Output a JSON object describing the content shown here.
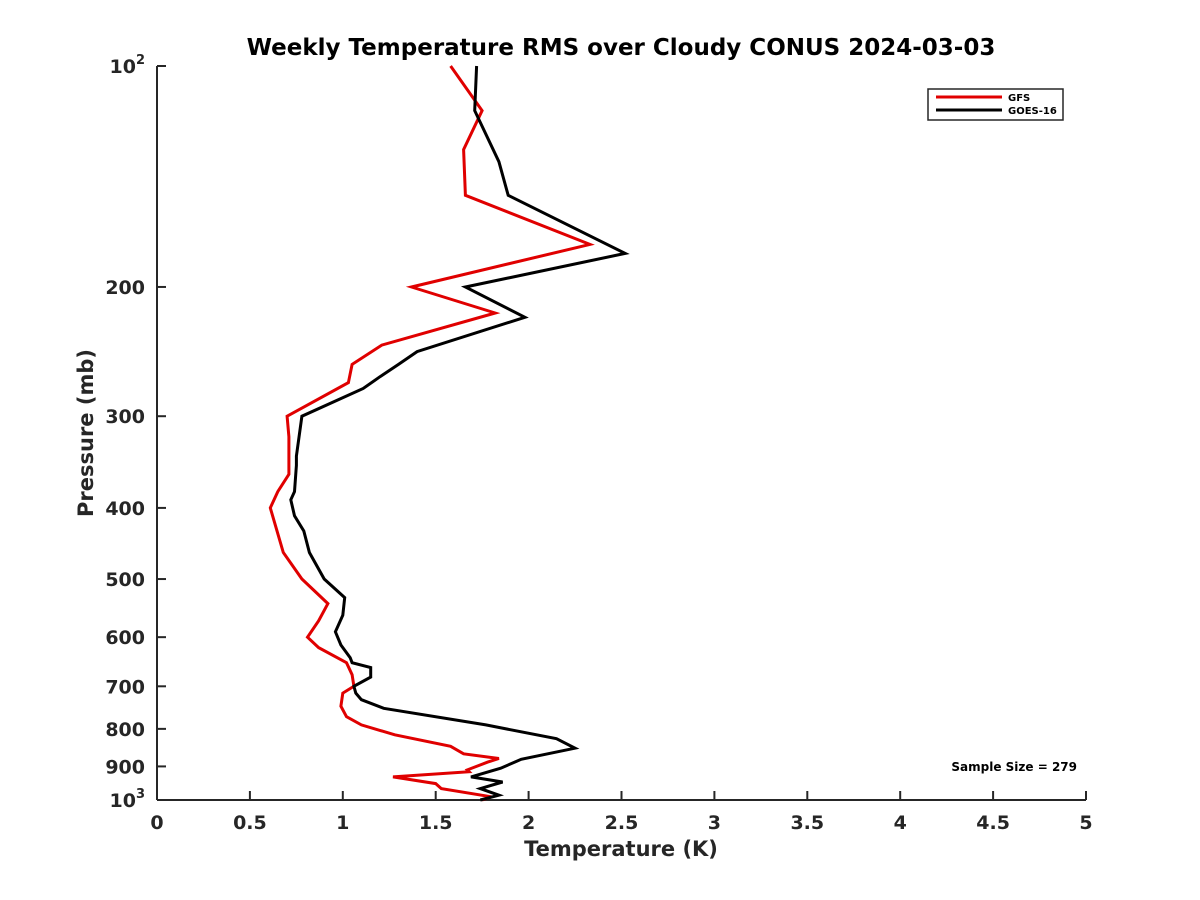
{
  "chart_data": {
    "type": "line",
    "title": "Weekly Temperature RMS over Cloudy CONUS 2024-03-03",
    "xlabel": "Temperature (K)",
    "ylabel": "Pressure (mb)",
    "xlim": [
      0,
      5
    ],
    "ylim": [
      100,
      1000
    ],
    "y_scale": "log",
    "y_reversed": true,
    "grid": false,
    "legend_position": "top-right",
    "x_ticks": [
      {
        "value": 0,
        "label": "0"
      },
      {
        "value": 0.5,
        "label": "0.5"
      },
      {
        "value": 1,
        "label": "1"
      },
      {
        "value": 1.5,
        "label": "1.5"
      },
      {
        "value": 2,
        "label": "2"
      },
      {
        "value": 2.5,
        "label": "2.5"
      },
      {
        "value": 3,
        "label": "3"
      },
      {
        "value": 3.5,
        "label": "3.5"
      },
      {
        "value": 4,
        "label": "4"
      },
      {
        "value": 4.5,
        "label": "4.5"
      },
      {
        "value": 5,
        "label": "5"
      }
    ],
    "y_ticks": [
      {
        "value": 100,
        "base": "10",
        "exp": "2"
      },
      {
        "value": 200,
        "label": "200"
      },
      {
        "value": 300,
        "label": "300"
      },
      {
        "value": 400,
        "label": "400"
      },
      {
        "value": 500,
        "label": "500"
      },
      {
        "value": 600,
        "label": "600"
      },
      {
        "value": 700,
        "label": "700"
      },
      {
        "value": 800,
        "label": "800"
      },
      {
        "value": 900,
        "label": "900"
      },
      {
        "value": 1000,
        "base": "10",
        "exp": "3"
      }
    ],
    "annotation": "Sample Size = 279",
    "series": [
      {
        "name": "GFS",
        "color": "#e00000",
        "points": [
          [
            1.58,
            100
          ],
          [
            1.75,
            115
          ],
          [
            1.65,
            130
          ],
          [
            1.66,
            150
          ],
          [
            2.33,
            175
          ],
          [
            1.37,
            200
          ],
          [
            1.82,
            217
          ],
          [
            1.21,
            240
          ],
          [
            1.05,
            255
          ],
          [
            1.03,
            270
          ],
          [
            0.7,
            300
          ],
          [
            0.71,
            320
          ],
          [
            0.71,
            360
          ],
          [
            0.65,
            380
          ],
          [
            0.61,
            400
          ],
          [
            0.68,
            460
          ],
          [
            0.78,
            500
          ],
          [
            0.92,
            540
          ],
          [
            0.87,
            570
          ],
          [
            0.81,
            600
          ],
          [
            0.87,
            620
          ],
          [
            1.02,
            650
          ],
          [
            1.05,
            675
          ],
          [
            1.06,
            700
          ],
          [
            1.0,
            715
          ],
          [
            0.99,
            745
          ],
          [
            1.02,
            770
          ],
          [
            1.1,
            790
          ],
          [
            1.28,
            815
          ],
          [
            1.58,
            845
          ],
          [
            1.65,
            865
          ],
          [
            1.84,
            878
          ],
          [
            1.78,
            888
          ],
          [
            1.67,
            910
          ],
          [
            1.68,
            915
          ],
          [
            1.27,
            930
          ],
          [
            1.5,
            950
          ],
          [
            1.53,
            965
          ],
          [
            1.8,
            990
          ],
          [
            1.75,
            1000
          ]
        ]
      },
      {
        "name": "GOES-16",
        "color": "#000000",
        "points": [
          [
            1.72,
            100
          ],
          [
            1.71,
            115
          ],
          [
            1.84,
            135
          ],
          [
            1.89,
            150
          ],
          [
            2.52,
            180
          ],
          [
            1.66,
            200
          ],
          [
            1.98,
            220
          ],
          [
            1.4,
            245
          ],
          [
            1.3,
            255
          ],
          [
            1.2,
            265
          ],
          [
            1.11,
            275
          ],
          [
            0.78,
            300
          ],
          [
            0.75,
            340
          ],
          [
            0.75,
            350
          ],
          [
            0.74,
            380
          ],
          [
            0.72,
            390
          ],
          [
            0.74,
            410
          ],
          [
            0.79,
            430
          ],
          [
            0.82,
            460
          ],
          [
            0.9,
            500
          ],
          [
            1.01,
            530
          ],
          [
            1.0,
            560
          ],
          [
            0.96,
            590
          ],
          [
            0.99,
            615
          ],
          [
            1.04,
            640
          ],
          [
            1.05,
            650
          ],
          [
            1.15,
            660
          ],
          [
            1.15,
            680
          ],
          [
            1.06,
            700
          ],
          [
            1.07,
            715
          ],
          [
            1.1,
            730
          ],
          [
            1.22,
            750
          ],
          [
            1.77,
            790
          ],
          [
            2.15,
            825
          ],
          [
            2.25,
            850
          ],
          [
            1.96,
            880
          ],
          [
            1.85,
            905
          ],
          [
            1.69,
            930
          ],
          [
            1.86,
            945
          ],
          [
            1.74,
            965
          ],
          [
            1.84,
            985
          ],
          [
            1.74,
            1000
          ]
        ]
      }
    ]
  }
}
